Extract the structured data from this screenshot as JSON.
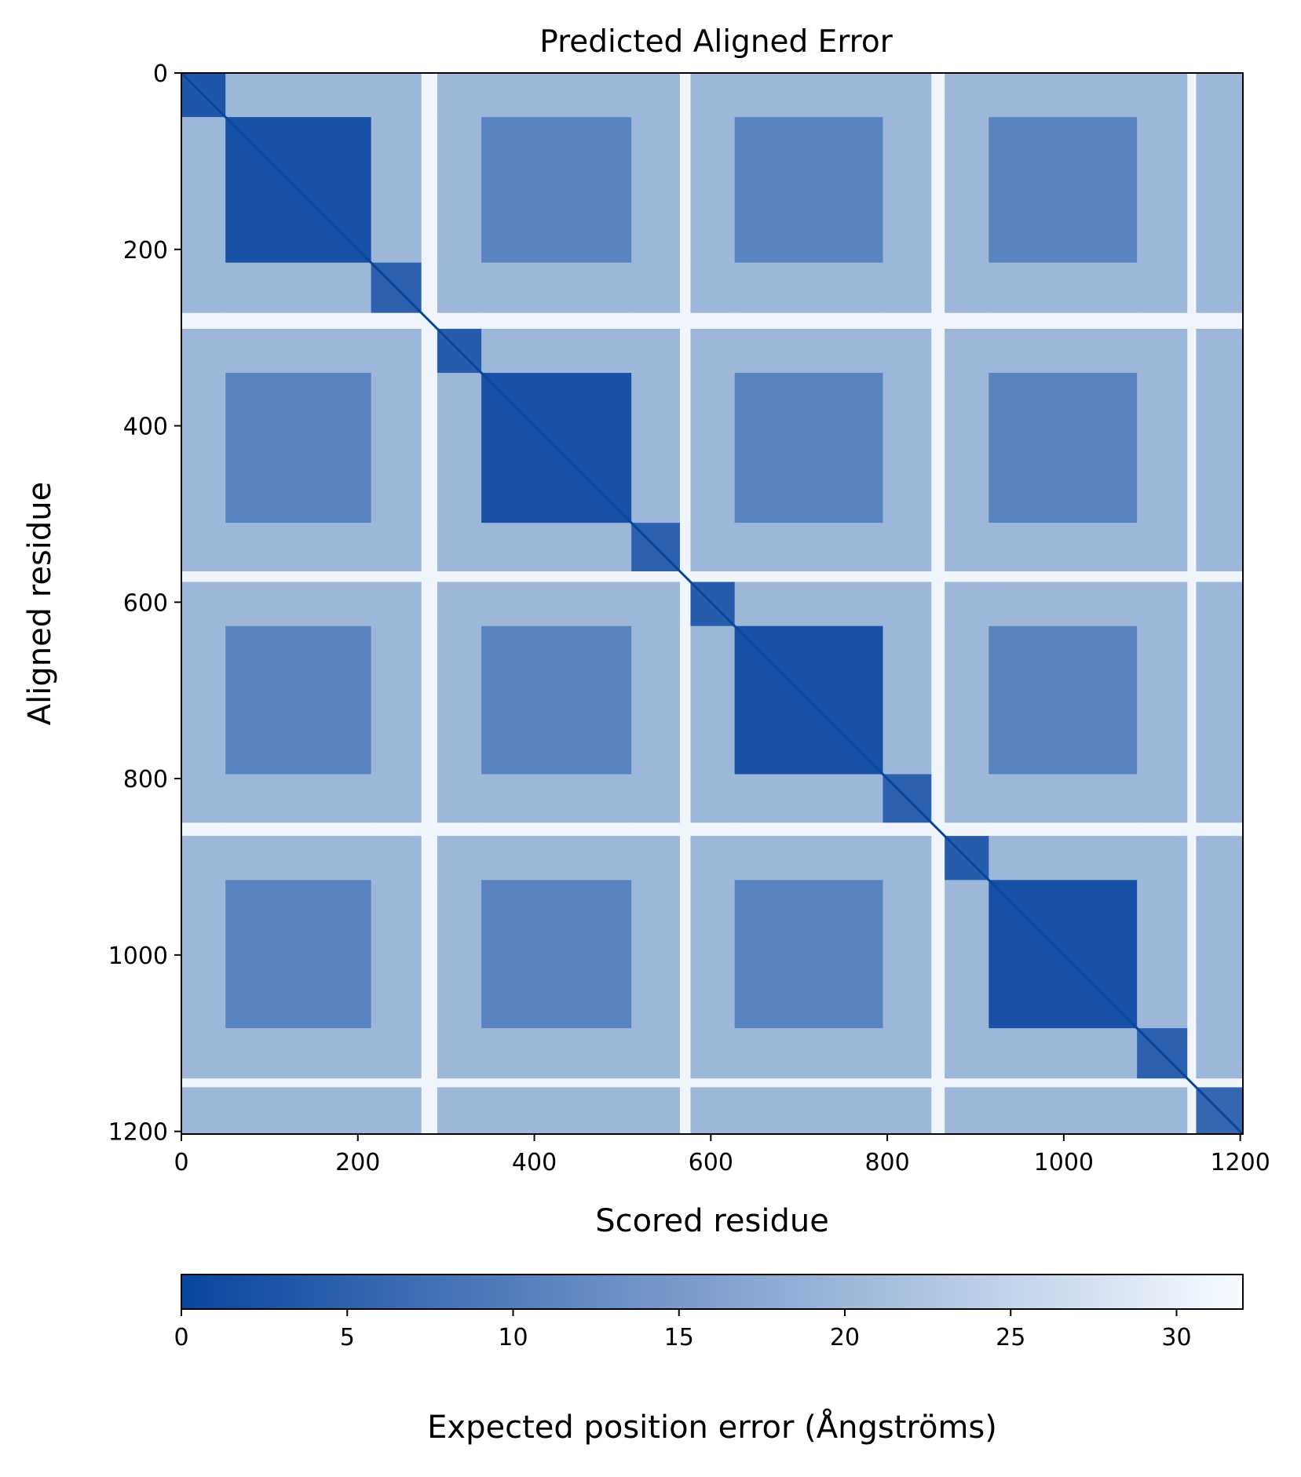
{
  "chart_data": {
    "type": "heatmap",
    "title": "Predicted Aligned Error",
    "xlabel": "Scored residue",
    "ylabel": "Aligned residue",
    "xlim": [
      0,
      1203
    ],
    "ylim": [
      1203,
      0
    ],
    "xticks": [
      0,
      200,
      400,
      600,
      800,
      1000,
      1200
    ],
    "yticks": [
      0,
      200,
      400,
      600,
      800,
      1000,
      1200
    ],
    "colormap": "Blues_r",
    "color_low": "#08459e",
    "color_high": "#f7fbff",
    "colorbar": {
      "label": "Expected position error (Ångströms)",
      "range": [
        0,
        32
      ],
      "ticks": [
        0,
        5,
        10,
        15,
        20,
        25,
        30
      ],
      "orientation": "horizontal"
    },
    "domains": [
      {
        "start": 0,
        "end": 50,
        "pae": 3
      },
      {
        "start": 50,
        "end": 215,
        "pae": 2
      },
      {
        "start": 215,
        "end": 272,
        "pae": 5
      },
      {
        "start": 272,
        "end": 290,
        "pae": 31
      },
      {
        "start": 290,
        "end": 340,
        "pae": 4
      },
      {
        "start": 340,
        "end": 510,
        "pae": 2
      },
      {
        "start": 510,
        "end": 565,
        "pae": 5
      },
      {
        "start": 565,
        "end": 577,
        "pae": 31
      },
      {
        "start": 577,
        "end": 627,
        "pae": 4
      },
      {
        "start": 627,
        "end": 795,
        "pae": 2
      },
      {
        "start": 795,
        "end": 850,
        "pae": 5
      },
      {
        "start": 850,
        "end": 865,
        "pae": 31
      },
      {
        "start": 865,
        "end": 915,
        "pae": 4
      },
      {
        "start": 915,
        "end": 1083,
        "pae": 2
      },
      {
        "start": 1083,
        "end": 1140,
        "pae": 5
      },
      {
        "start": 1140,
        "end": 1150,
        "pae": 31
      },
      {
        "start": 1150,
        "end": 1203,
        "pae": 6
      }
    ],
    "off_diagonal": {
      "structured_pair": 11,
      "weak_pair": 20,
      "with_linker": 31
    }
  }
}
